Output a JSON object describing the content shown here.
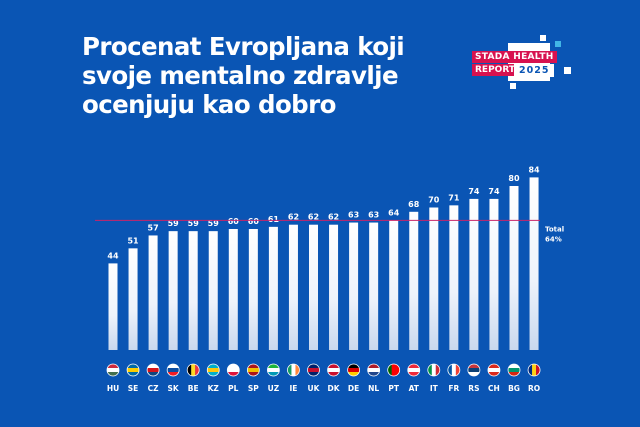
{
  "title_lines": [
    "Procenat Evropljana koji",
    "svoje mentalno zdravlje",
    "ocenjuju kao dobro"
  ],
  "logo": {
    "line1": "STADA HEALTH",
    "line2": "REPORT",
    "year": "2025"
  },
  "colors": {
    "background": "#0a55b4",
    "bar": "#ffffff",
    "total_line": "#c8246a",
    "logo_red": "#d7124f"
  },
  "chart_data": {
    "type": "bar",
    "title": "Procenat Evropljana koji svoje mentalno zdravlje ocenjuju kao dobro",
    "categories": [
      "HU",
      "SE",
      "CZ",
      "SK",
      "BE",
      "KZ",
      "PL",
      "SP",
      "UZ",
      "IE",
      "UK",
      "DK",
      "DE",
      "NL",
      "PT",
      "AT",
      "IT",
      "FR",
      "RS",
      "CH",
      "BG",
      "RO"
    ],
    "values": [
      44,
      51,
      57,
      59,
      59,
      59,
      60,
      60,
      61,
      62,
      62,
      62,
      63,
      63,
      64,
      68,
      70,
      71,
      74,
      74,
      80,
      84
    ],
    "value_labels": [
      "44",
      "51",
      "57",
      "59",
      "59",
      "59",
      "60",
      "60",
      "61",
      "62",
      "62",
      "62",
      "63",
      "63",
      "64",
      "68",
      "70",
      "71",
      "74",
      "74",
      "80",
      "84"
    ],
    "reference_line": {
      "value": 64,
      "label": "Total",
      "value_label": "64%"
    },
    "ylim": [
      0,
      100
    ],
    "unit": "%",
    "xlabel": "",
    "ylabel": "",
    "grid": false
  },
  "flags": {
    "HU": [
      "#cd2a3e",
      "#ffffff",
      "#436f4d"
    ],
    "SE": [
      "#006aa7",
      "#fecc00",
      "#006aa7"
    ],
    "CZ": [
      "#ffffff",
      "#d7141a",
      "#11457e"
    ],
    "SK": [
      "#ffffff",
      "#0b4ea2",
      "#ee1c25"
    ],
    "BE": [
      "#000000",
      "#fdda24",
      "#ef3340"
    ],
    "KZ": [
      "#00afca",
      "#fec50c",
      "#00afca"
    ],
    "PL": [
      "#ffffff",
      "#ffffff",
      "#dc143c"
    ],
    "SP": [
      "#aa151b",
      "#f1bf00",
      "#aa151b"
    ],
    "UZ": [
      "#1eb53a",
      "#ffffff",
      "#0099b5"
    ],
    "IE": [
      "#169b62",
      "#ffffff",
      "#ff883e"
    ],
    "UK": [
      "#012169",
      "#c8102e",
      "#012169"
    ],
    "DK": [
      "#c8102e",
      "#ffffff",
      "#c8102e"
    ],
    "DE": [
      "#000000",
      "#dd0000",
      "#ffce00"
    ],
    "NL": [
      "#ae1c28",
      "#ffffff",
      "#21468b"
    ],
    "PT": [
      "#006600",
      "#ff0000",
      "#ff0000"
    ],
    "AT": [
      "#ed2939",
      "#ffffff",
      "#ed2939"
    ],
    "IT": [
      "#009246",
      "#ffffff",
      "#ce2b37"
    ],
    "FR": [
      "#0055a4",
      "#ffffff",
      "#ef4135"
    ],
    "RS": [
      "#c6363c",
      "#0c4076",
      "#ffffff"
    ],
    "CH": [
      "#da291c",
      "#ffffff",
      "#da291c"
    ],
    "BG": [
      "#ffffff",
      "#00966e",
      "#d62612"
    ],
    "RO": [
      "#002b7f",
      "#fcd116",
      "#ce1126"
    ]
  }
}
